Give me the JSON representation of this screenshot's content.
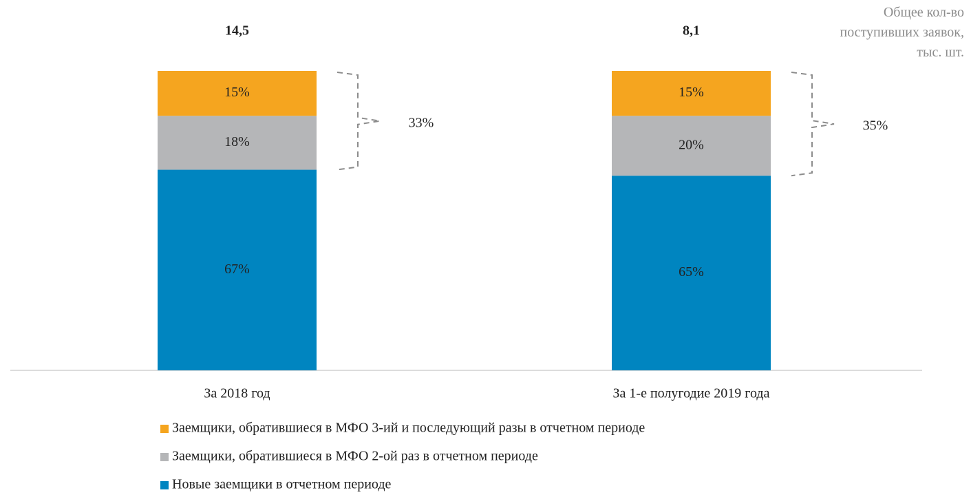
{
  "chart_data": {
    "type": "stacked_bar",
    "categories": [
      "За 2018 год",
      "За 1-е полугодие 2019 года"
    ],
    "series": [
      {
        "name": "Новые заемщики в отчетном периоде",
        "color": "#0085c0",
        "values": [
          67,
          65
        ],
        "value_labels": [
          "67%",
          "65%"
        ]
      },
      {
        "name": "Заемщики, обратившиеся в МФО 2-ой раз в отчетном периоде",
        "color": "#b5b6b8",
        "values": [
          18,
          20
        ],
        "value_labels": [
          "18%",
          "20%"
        ]
      },
      {
        "name": "Заемщики, обратившиеся в МФО 3-ий и последующий разы в отчетном периоде",
        "color": "#f5a51f",
        "values": [
          15,
          15
        ],
        "value_labels": [
          "15%",
          "15%"
        ]
      }
    ],
    "totals": {
      "label": "Общее кол-во поступивших заявок, тыс. шт.",
      "values": [
        14.5,
        8.1
      ],
      "value_labels": [
        "14,5",
        "8,1"
      ]
    },
    "brackets": {
      "values": [
        33,
        35
      ],
      "value_labels": [
        "33%",
        "35%"
      ]
    },
    "ylim": [
      0,
      100
    ]
  }
}
